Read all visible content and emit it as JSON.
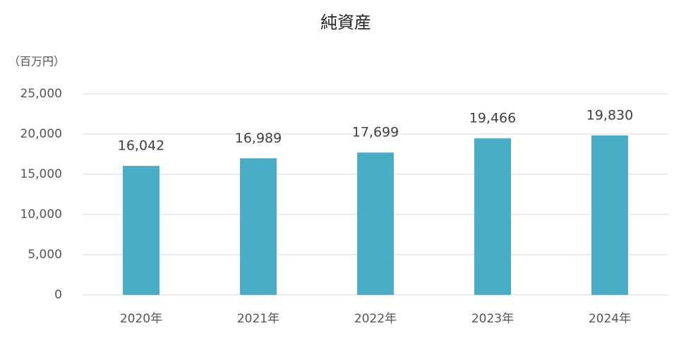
{
  "chart_data": {
    "type": "bar",
    "title": "純資産",
    "y_axis_label": "（百万円）",
    "categories": [
      "2020年",
      "2021年",
      "2022年",
      "2023年",
      "2024年"
    ],
    "values": [
      16042,
      16989,
      17699,
      19466,
      19830
    ],
    "value_labels": [
      "16,042",
      "16,989",
      "17,699",
      "19,466",
      "19,830"
    ],
    "color": "#4bacc6",
    "ylim": [
      0,
      25000
    ],
    "yticks": [
      0,
      {
        "value": 5000,
        "label": "5,000"
      },
      {
        "value": 10000,
        "label": "10,000"
      },
      {
        "value": 15000,
        "label": "15,000"
      },
      {
        "value": 20000,
        "label": "20,000"
      },
      {
        "value": 25000,
        "label": "25,000"
      }
    ],
    "grid": true
  }
}
